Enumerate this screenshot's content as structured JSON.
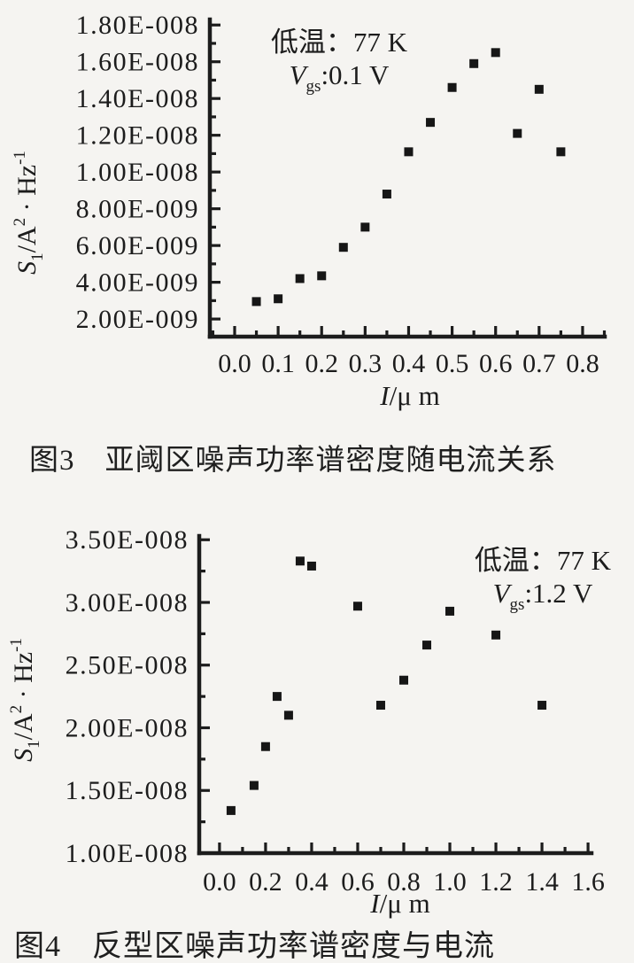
{
  "page": {
    "kind": "scanned journal figure page",
    "background_color": "#f5f4f1",
    "ink_color": "#1c1c1c",
    "marker_color": "#161616"
  },
  "chart_data": [
    {
      "id": "figure-3",
      "type": "scatter",
      "caption": "图3　亚阈区噪声功率谱密度随电流关系",
      "annotation": {
        "line1": "低温：77 K",
        "v_pre": "V",
        "v_sub": "gs",
        "v_post": ":0.1 V"
      },
      "xlabel_segments": [
        {
          "t": "I",
          "italic": true
        },
        {
          "t": "/μ m"
        }
      ],
      "ylabel_segments": [
        {
          "t": "S",
          "italic": true
        },
        {
          "t": "1",
          "script": "sub"
        },
        {
          "t": "/A"
        },
        {
          "t": "2",
          "script": "sup"
        },
        {
          "t": " · Hz"
        },
        {
          "t": "-1",
          "script": "sup"
        }
      ],
      "xlim": [
        -0.057,
        0.851
      ],
      "ylim": [
        1.04e-09,
        1.83e-08
      ],
      "x_ticks": [
        {
          "v": 0.0,
          "label": "0.0"
        },
        {
          "v": 0.1,
          "label": "0.1"
        },
        {
          "v": 0.2,
          "label": "0.2"
        },
        {
          "v": 0.3,
          "label": "0.3"
        },
        {
          "v": 0.4,
          "label": "0.4"
        },
        {
          "v": 0.5,
          "label": "0.5"
        },
        {
          "v": 0.6,
          "label": "0.6"
        },
        {
          "v": 0.7,
          "label": "0.7"
        },
        {
          "v": 0.8,
          "label": "0.8"
        }
      ],
      "x_minor": [
        -0.05,
        0.05,
        0.15,
        0.25,
        0.35,
        0.45,
        0.55,
        0.65,
        0.75,
        0.85
      ],
      "y_ticks": [
        {
          "v": 2e-09,
          "label": "2.00E-009"
        },
        {
          "v": 4e-09,
          "label": "4.00E-009"
        },
        {
          "v": 6e-09,
          "label": "6.00E-009"
        },
        {
          "v": 8e-09,
          "label": "8.00E-009"
        },
        {
          "v": 1e-08,
          "label": "1.00E-008"
        },
        {
          "v": 1.2e-08,
          "label": "1.20E-008"
        },
        {
          "v": 1.4e-08,
          "label": "1.40E-008"
        },
        {
          "v": 1.6e-08,
          "label": "1.60E-008"
        },
        {
          "v": 1.8e-08,
          "label": "1.80E-008"
        }
      ],
      "y_minor": [
        3e-09,
        5e-09,
        7e-09,
        9e-09,
        1.1e-08,
        1.3e-08,
        1.5e-08,
        1.7e-08
      ],
      "points": [
        [
          0.05,
          2.95e-09
        ],
        [
          0.1,
          3.1e-09
        ],
        [
          0.15,
          4.2e-09
        ],
        [
          0.2,
          4.35e-09
        ],
        [
          0.25,
          5.9e-09
        ],
        [
          0.3,
          7e-09
        ],
        [
          0.35,
          8.8e-09
        ],
        [
          0.4,
          1.11e-08
        ],
        [
          0.45,
          1.27e-08
        ],
        [
          0.5,
          1.46e-08
        ],
        [
          0.55,
          1.59e-08
        ],
        [
          0.6,
          1.65e-08
        ],
        [
          0.65,
          1.21e-08
        ],
        [
          0.7,
          1.45e-08
        ],
        [
          0.75,
          1.11e-08
        ]
      ]
    },
    {
      "id": "figure-4",
      "type": "scatter",
      "caption": "图4　反型区噪声功率谱密度与电流",
      "annotation": {
        "line1": "低温：77 K",
        "v_pre": "V",
        "v_sub": "gs",
        "v_post": ":1.2 V"
      },
      "xlabel_segments": [
        {
          "t": "I",
          "italic": true
        },
        {
          "t": "/μ m"
        }
      ],
      "ylabel_segments": [
        {
          "t": "S",
          "italic": true
        },
        {
          "t": "1",
          "script": "sub"
        },
        {
          "t": "/A"
        },
        {
          "t": "2",
          "script": "sup"
        },
        {
          "t": " · Hz"
        },
        {
          "t": "-1",
          "script": "sup"
        }
      ],
      "xlim": [
        -0.088,
        1.615
      ],
      "ylim": [
        1e-08,
        3.53e-08
      ],
      "x_ticks": [
        {
          "v": 0.0,
          "label": "0.0"
        },
        {
          "v": 0.2,
          "label": "0.2"
        },
        {
          "v": 0.4,
          "label": "0.4"
        },
        {
          "v": 0.6,
          "label": "0.6"
        },
        {
          "v": 0.8,
          "label": "0.8"
        },
        {
          "v": 1.0,
          "label": "1.0"
        },
        {
          "v": 1.2,
          "label": "1.2"
        },
        {
          "v": 1.4,
          "label": "1.4"
        },
        {
          "v": 1.6,
          "label": "1.6"
        }
      ],
      "x_minor": [
        0.1,
        0.3,
        0.5,
        0.7,
        0.9,
        1.1,
        1.3,
        1.5
      ],
      "y_ticks": [
        {
          "v": 1e-08,
          "label": "1.00E-008"
        },
        {
          "v": 1.5e-08,
          "label": "1.50E-008"
        },
        {
          "v": 2e-08,
          "label": "2.00E-008"
        },
        {
          "v": 2.5e-08,
          "label": "2.50E-008"
        },
        {
          "v": 3e-08,
          "label": "3.00E-008"
        },
        {
          "v": 3.5e-08,
          "label": "3.50E-008"
        }
      ],
      "y_minor": [
        1.25e-08,
        1.75e-08,
        2.25e-08,
        2.75e-08,
        3.25e-08
      ],
      "points": [
        [
          0.05,
          1.34e-08
        ],
        [
          0.15,
          1.54e-08
        ],
        [
          0.2,
          1.85e-08
        ],
        [
          0.25,
          2.25e-08
        ],
        [
          0.3,
          2.1e-08
        ],
        [
          0.35,
          3.33e-08
        ],
        [
          0.4,
          3.29e-08
        ],
        [
          0.6,
          2.97e-08
        ],
        [
          0.7,
          2.18e-08
        ],
        [
          0.8,
          2.38e-08
        ],
        [
          0.9,
          2.66e-08
        ],
        [
          1.0,
          2.93e-08
        ],
        [
          1.2,
          2.74e-08
        ],
        [
          1.4,
          2.18e-08
        ]
      ]
    }
  ]
}
